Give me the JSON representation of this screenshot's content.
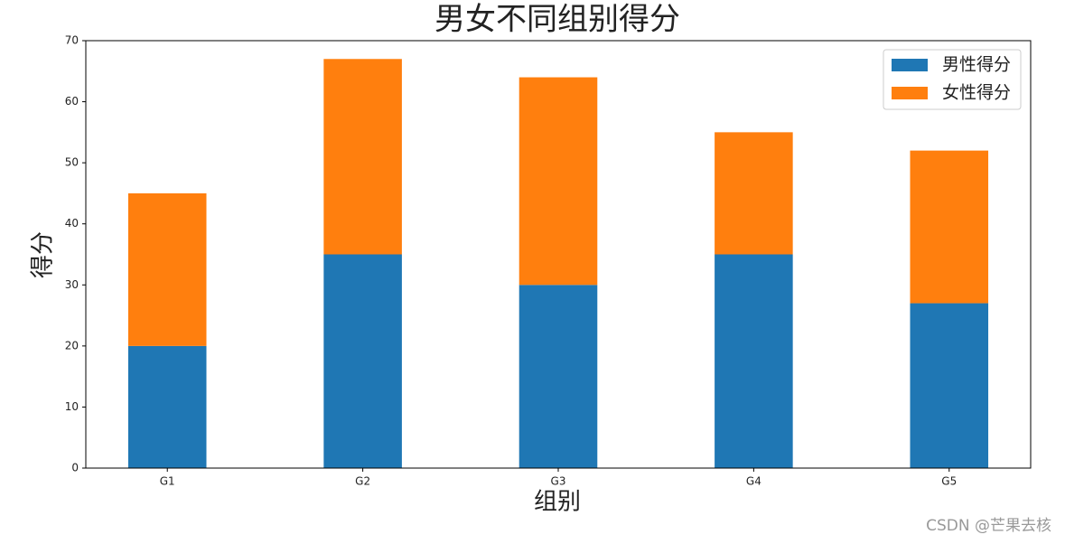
{
  "chart_data": {
    "type": "bar",
    "stacked": true,
    "title": "男女不同组别得分",
    "x_label": "组别",
    "y_label": "得分",
    "categories": [
      "G1",
      "G2",
      "G3",
      "G4",
      "G5"
    ],
    "series": [
      {
        "name": "男性得分",
        "color": "#1f77b4",
        "values": [
          20,
          35,
          30,
          35,
          27
        ]
      },
      {
        "name": "女性得分",
        "color": "#ff7f0e",
        "values": [
          25,
          32,
          34,
          20,
          25
        ]
      }
    ],
    "ylim": [
      0,
      70
    ],
    "yticks": [
      0,
      10,
      20,
      30,
      40,
      50,
      60,
      70
    ],
    "legend": "upper right",
    "grid": false
  },
  "watermark": "CSDN @芒果去核"
}
